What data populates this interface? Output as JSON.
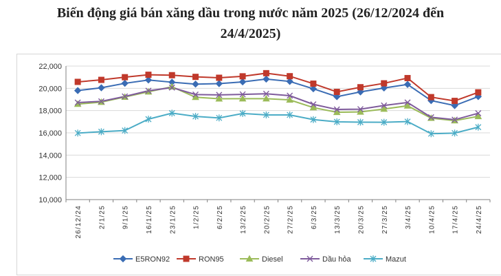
{
  "chart_data": {
    "type": "line",
    "title_line1": "Biến động giá bán xăng dầu trong nước năm 2025 (26/12/2024 đến",
    "title_line2": "24/4/2025)",
    "categories": [
      "26/12/24",
      "2/1/25",
      "9/1/25",
      "16/1/25",
      "23/1/25",
      "1/2/25",
      "6/2/25",
      "13/2/25",
      "20/2/25",
      "27/2/25",
      "6/3/25",
      "13/3/25",
      "20/3/25",
      "27/3/25",
      "3/4/25",
      "10/4/25",
      "17/4/25",
      "24/4/25"
    ],
    "y_ticks": [
      "10,000",
      "12,000",
      "14,000",
      "16,000",
      "18,000",
      "20,000",
      "22,000"
    ],
    "ylim": [
      10000,
      22000
    ],
    "series": [
      {
        "name": "E5RON92",
        "color": "#3a6cb4",
        "marker": "diamond",
        "values": [
          19800,
          20050,
          20450,
          20750,
          20550,
          20380,
          20420,
          20580,
          20830,
          20620,
          19960,
          19250,
          19680,
          20030,
          20350,
          18900,
          18450,
          19260
        ]
      },
      {
        "name": "RON95",
        "color": "#c0392b",
        "marker": "square",
        "values": [
          20580,
          20760,
          21000,
          21220,
          21180,
          21030,
          20950,
          21080,
          21360,
          21090,
          20420,
          19680,
          20100,
          20450,
          20920,
          19210,
          18870,
          19640
        ]
      },
      {
        "name": "Diesel",
        "color": "#9bbb59",
        "marker": "triangle",
        "values": [
          18580,
          18760,
          19220,
          19690,
          20140,
          19200,
          19060,
          19070,
          19070,
          18960,
          18270,
          17850,
          17880,
          18140,
          18430,
          17320,
          17100,
          17480
        ]
      },
      {
        "name": "Dầu hỏa",
        "color": "#7e5a9b",
        "marker": "x",
        "values": [
          18720,
          18830,
          19270,
          19780,
          20070,
          19440,
          19410,
          19460,
          19510,
          19340,
          18560,
          18100,
          18130,
          18460,
          18730,
          17400,
          17180,
          17760
        ]
      },
      {
        "name": "Mazut",
        "color": "#4bacc6",
        "marker": "star",
        "values": [
          15980,
          16100,
          16210,
          17230,
          17770,
          17480,
          17340,
          17740,
          17610,
          17610,
          17190,
          16990,
          16960,
          16950,
          17010,
          15920,
          15980,
          16510
        ]
      }
    ]
  }
}
